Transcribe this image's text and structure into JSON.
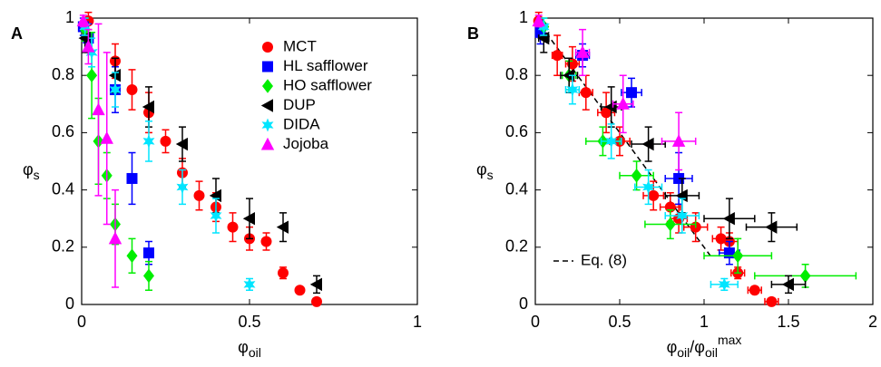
{
  "chart_data": [
    {
      "type": "scatter",
      "panel_label": "A",
      "xlabel": [
        {
          "text": "φ"
        },
        {
          "text": "oil",
          "shift": "sub"
        }
      ],
      "ylabel": [
        {
          "text": "φ"
        },
        {
          "text": "s",
          "shift": "sub"
        }
      ],
      "xlim": [
        0,
        1
      ],
      "ylim": [
        0,
        1
      ],
      "xticks": [
        0,
        0.5,
        1
      ],
      "yticks": [
        0,
        0.2,
        0.4,
        0.6,
        0.8,
        1
      ],
      "legend": "upper right",
      "series": [
        {
          "name": "MCT",
          "color": "#ff0000",
          "marker": "circle",
          "x": [
            0.02,
            0.1,
            0.15,
            0.2,
            0.25,
            0.3,
            0.35,
            0.4,
            0.45,
            0.5,
            0.55,
            0.6,
            0.65,
            0.7
          ],
          "values": [
            0.99,
            0.85,
            0.75,
            0.67,
            0.57,
            0.46,
            0.38,
            0.34,
            0.27,
            0.23,
            0.22,
            0.11,
            0.05,
            0.01
          ],
          "yerr": [
            0.03,
            0.06,
            0.07,
            0.07,
            0.04,
            0.05,
            0.05,
            0.05,
            0.05,
            0.04,
            0.03,
            0.02,
            0.01,
            0.01
          ]
        },
        {
          "name": "HL safflower",
          "color": "#0000ff",
          "marker": "square",
          "x": [
            0.005,
            0.02,
            0.1,
            0.15,
            0.2
          ],
          "values": [
            0.97,
            0.93,
            0.75,
            0.44,
            0.18
          ],
          "yerr": [
            0.03,
            0.05,
            0.08,
            0.09,
            0.04
          ]
        },
        {
          "name": "HO safflower",
          "color": "#00ee00",
          "marker": "diamond",
          "x": [
            0.01,
            0.03,
            0.05,
            0.075,
            0.1,
            0.15,
            0.2
          ],
          "values": [
            0.96,
            0.8,
            0.57,
            0.45,
            0.28,
            0.17,
            0.1
          ],
          "yerr": [
            0.04,
            0.15,
            0.15,
            0.08,
            0.07,
            0.06,
            0.05
          ]
        },
        {
          "name": "DUP",
          "color": "#000000",
          "marker": "left-triangle",
          "x": [
            0.01,
            0.1,
            0.2,
            0.3,
            0.4,
            0.5,
            0.6,
            0.7
          ],
          "values": [
            0.93,
            0.8,
            0.69,
            0.56,
            0.38,
            0.3,
            0.27,
            0.07
          ],
          "yerr": [
            0.05,
            0.06,
            0.07,
            0.06,
            0.06,
            0.07,
            0.05,
            0.03
          ]
        },
        {
          "name": "DIDA",
          "color": "#00e5ff",
          "marker": "star",
          "x": [
            0.01,
            0.03,
            0.1,
            0.2,
            0.3,
            0.4,
            0.5
          ],
          "values": [
            0.97,
            0.88,
            0.75,
            0.57,
            0.41,
            0.31,
            0.07
          ],
          "yerr": [
            0.03,
            0.05,
            0.06,
            0.07,
            0.06,
            0.06,
            0.02
          ]
        },
        {
          "name": "Jojoba",
          "color": "#ff00ff",
          "marker": "triangle",
          "x": [
            0.005,
            0.02,
            0.05,
            0.075,
            0.1
          ],
          "values": [
            0.99,
            0.9,
            0.68,
            0.58,
            0.23
          ],
          "yerr": [
            0.02,
            0.06,
            0.3,
            0.3,
            0.17
          ]
        }
      ]
    },
    {
      "type": "scatter",
      "panel_label": "B",
      "xlabel": [
        {
          "text": "φ"
        },
        {
          "text": "oil",
          "shift": "sub"
        },
        {
          "text": "/φ"
        },
        {
          "text": "oil",
          "shift": "sub"
        },
        {
          "text": "max",
          "shift": "sup"
        }
      ],
      "ylabel": [
        {
          "text": "φ"
        },
        {
          "text": "s",
          "shift": "sub"
        }
      ],
      "xlim": [
        0,
        2
      ],
      "ylim": [
        0,
        1
      ],
      "xticks": [
        0,
        0.5,
        1,
        1.5,
        2
      ],
      "yticks": [
        0,
        0.2,
        0.4,
        0.6,
        0.8,
        1
      ],
      "legend": "lower left",
      "line": {
        "name": "Eq. (8)",
        "color": "#000000",
        "x": [
          0,
          1.05
        ],
        "values": [
          1,
          0.16
        ]
      },
      "series": [
        {
          "name": "MCT",
          "color": "#ff0000",
          "marker": "circle",
          "x": [
            0.02,
            0.13,
            0.22,
            0.3,
            0.42,
            0.5,
            0.7,
            0.8,
            0.85,
            0.95,
            1.1,
            1.15,
            1.2,
            1.3,
            1.4
          ],
          "values": [
            0.99,
            0.87,
            0.84,
            0.74,
            0.67,
            0.57,
            0.38,
            0.34,
            0.3,
            0.27,
            0.23,
            0.22,
            0.11,
            0.05,
            0.01
          ],
          "yerr": [
            0.03,
            0.07,
            0.06,
            0.06,
            0.07,
            0.05,
            0.05,
            0.05,
            0.05,
            0.05,
            0.04,
            0.03,
            0.02,
            0.01,
            0.01
          ],
          "xerr": [
            0.01,
            0.03,
            0.04,
            0.04,
            0.05,
            0.06,
            0.06,
            0.06,
            0.05,
            0.07,
            0.05,
            0.05,
            0.04,
            0.04,
            0.04
          ]
        },
        {
          "name": "HL safflower",
          "color": "#0000ff",
          "marker": "square",
          "x": [
            0.03,
            0.28,
            0.57,
            0.85,
            1.15
          ],
          "values": [
            0.95,
            0.87,
            0.74,
            0.44,
            0.18
          ],
          "yerr": [
            0.04,
            0.04,
            0.05,
            0.09,
            0.04
          ],
          "xerr": [
            0.02,
            0.04,
            0.06,
            0.08,
            0.06
          ]
        },
        {
          "name": "HO safflower",
          "color": "#00ee00",
          "marker": "diamond",
          "x": [
            0.05,
            0.2,
            0.4,
            0.6,
            0.8,
            1.2,
            1.6
          ],
          "values": [
            0.97,
            0.8,
            0.57,
            0.45,
            0.28,
            0.17,
            0.1
          ],
          "yerr": [
            0.03,
            0.05,
            0.05,
            0.05,
            0.05,
            0.06,
            0.04
          ],
          "xerr": [
            0.02,
            0.04,
            0.1,
            0.1,
            0.15,
            0.2,
            0.3
          ]
        },
        {
          "name": "DUP",
          "color": "#000000",
          "marker": "left-triangle",
          "x": [
            0.05,
            0.2,
            0.45,
            0.67,
            0.87,
            1.15,
            1.4,
            1.5
          ],
          "values": [
            0.93,
            0.8,
            0.69,
            0.56,
            0.38,
            0.3,
            0.27,
            0.07
          ],
          "yerr": [
            0.05,
            0.06,
            0.07,
            0.06,
            0.06,
            0.07,
            0.05,
            0.03
          ],
          "xerr": [
            0.03,
            0.05,
            0.06,
            0.1,
            0.1,
            0.15,
            0.15,
            0.1
          ]
        },
        {
          "name": "DIDA",
          "color": "#00e5ff",
          "marker": "star",
          "x": [
            0.05,
            0.22,
            0.45,
            0.67,
            0.87,
            1.12
          ],
          "values": [
            0.97,
            0.75,
            0.57,
            0.41,
            0.31,
            0.07
          ],
          "yerr": [
            0.03,
            0.05,
            0.06,
            0.06,
            0.06,
            0.02
          ],
          "xerr": [
            0.02,
            0.04,
            0.06,
            0.08,
            0.1,
            0.08
          ]
        },
        {
          "name": "Jojoba",
          "color": "#ff00ff",
          "marker": "triangle",
          "x": [
            0.02,
            0.28,
            0.52,
            0.85
          ],
          "values": [
            0.99,
            0.88,
            0.7,
            0.57
          ],
          "yerr": [
            0.02,
            0.08,
            0.1,
            0.1
          ],
          "xerr": [
            0.01,
            0.04,
            0.06,
            0.1
          ]
        }
      ]
    }
  ]
}
